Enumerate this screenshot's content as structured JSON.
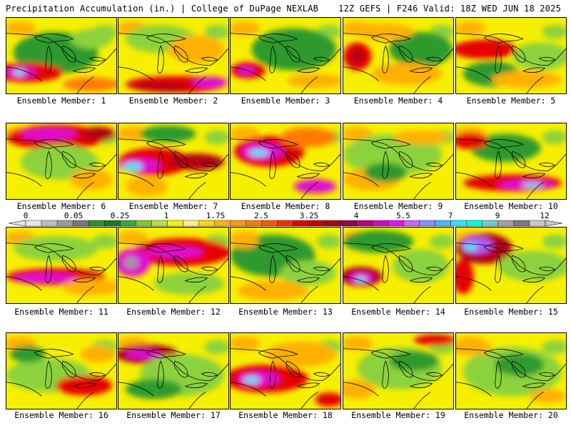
{
  "header": {
    "left": "Precipitation Accumulation (in.) | College of DuPage NEXLAB",
    "right": "12Z GEFS | F246 Valid: 18Z WED JUN 18 2025"
  },
  "members": [
    {
      "label": "Ensemble Member: 1"
    },
    {
      "label": "Ensemble Member: 2"
    },
    {
      "label": "Ensemble Member: 3"
    },
    {
      "label": "Ensemble Member: 4"
    },
    {
      "label": "Ensemble Member: 5"
    },
    {
      "label": "Ensemble Member: 6"
    },
    {
      "label": "Ensemble Member: 7"
    },
    {
      "label": "Ensemble Member: 8"
    },
    {
      "label": "Ensemble Member: 9"
    },
    {
      "label": "Ensemble Member: 10"
    },
    {
      "label": "Ensemble Member: 11"
    },
    {
      "label": "Ensemble Member: 12"
    },
    {
      "label": "Ensemble Member: 13"
    },
    {
      "label": "Ensemble Member: 14"
    },
    {
      "label": "Ensemble Member: 15"
    },
    {
      "label": "Ensemble Member: 16"
    },
    {
      "label": "Ensemble Member: 17"
    },
    {
      "label": "Ensemble Member: 18"
    },
    {
      "label": "Ensemble Member: 19"
    },
    {
      "label": "Ensemble Member: 20"
    }
  ],
  "legend": {
    "tick_labels": [
      "0",
      "0.05",
      "0.25",
      "1",
      "1.75",
      "2.5",
      "3.25",
      "4",
      "5.5",
      "7",
      "9",
      "12"
    ],
    "colors": [
      "#e6e6e6",
      "#bdbdbd",
      "#9a9a9a",
      "#787878",
      "#2f8f2f",
      "#1f7a1f",
      "#3aa63a",
      "#7ec832",
      "#b8e03c",
      "#f3f300",
      "#fff07a",
      "#ffd800",
      "#ffb400",
      "#ff9a00",
      "#ff7a00",
      "#ff5500",
      "#ff2a00",
      "#e60000",
      "#c80000",
      "#a80014",
      "#8c0a3c",
      "#b40a78",
      "#d40ab4",
      "#f00af0",
      "#c864ff",
      "#8c8cff",
      "#50b4ff",
      "#28e6ff",
      "#00ffd2",
      "#78c8c8",
      "#a0a0a0",
      "#7a7a7a",
      "#c8c8c8"
    ]
  }
}
